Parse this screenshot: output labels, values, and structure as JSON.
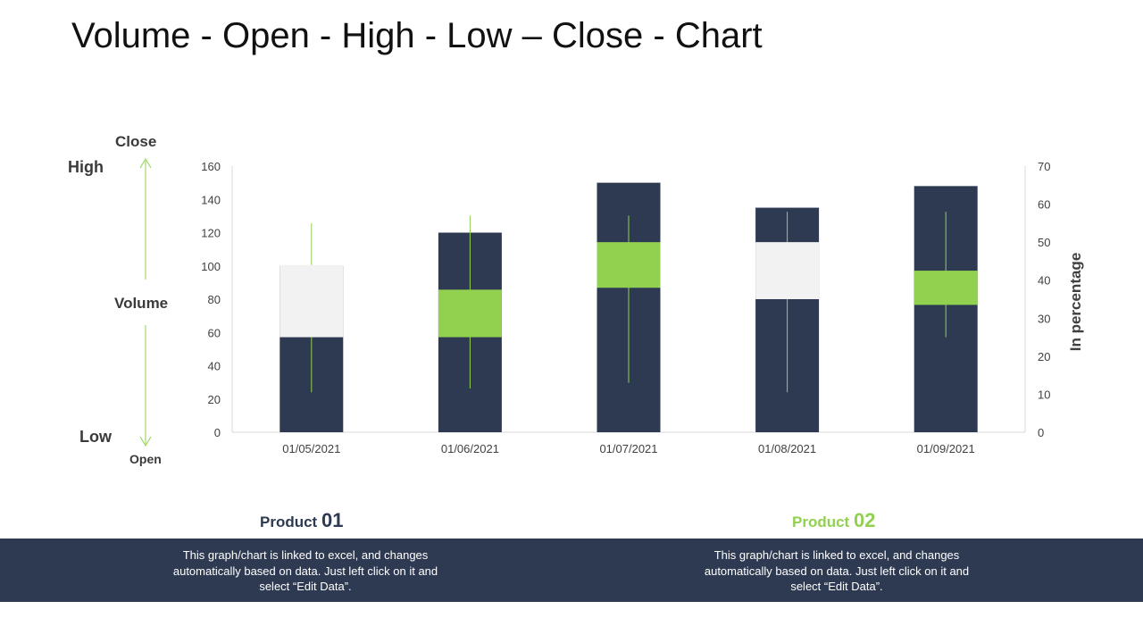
{
  "title": "Volume - Open - High - Low – Close - Chart",
  "legend": {
    "close": "Close",
    "high": "High",
    "volume": "Volume",
    "low": "Low",
    "open": "Open"
  },
  "colors": {
    "volume_bar": "#2e3a52",
    "up_candle": "#92d050",
    "down_candle": "#f2f2f2",
    "wick": "#92d050",
    "axis_text": "#404040",
    "footer": "#2e3a52"
  },
  "chart_data": {
    "type": "bar",
    "title": "",
    "categories": [
      "01/05/2021",
      "01/06/2021",
      "01/07/2021",
      "01/08/2021",
      "01/09/2021"
    ],
    "series": [
      {
        "name": "Volume",
        "axis": "left",
        "values": [
          100,
          120,
          150,
          135,
          148
        ]
      },
      {
        "name": "Open",
        "axis": "right",
        "values": [
          44,
          25,
          38,
          50,
          33.5
        ]
      },
      {
        "name": "High",
        "axis": "right",
        "values": [
          55,
          57,
          57,
          58,
          58
        ]
      },
      {
        "name": "Low",
        "axis": "right",
        "values": [
          10.5,
          11.5,
          13,
          10.5,
          25
        ]
      },
      {
        "name": "Close",
        "axis": "right",
        "values": [
          25,
          37.5,
          50,
          35,
          42.5
        ]
      }
    ],
    "ylim_left": [
      0,
      160
    ],
    "yticks_left": [
      0,
      20,
      40,
      60,
      80,
      100,
      120,
      140,
      160
    ],
    "ylim_right": [
      0,
      70
    ],
    "yticks_right": [
      0,
      10,
      20,
      30,
      40,
      50,
      60,
      70
    ],
    "xlabel": "",
    "ylabel_left": "",
    "ylabel_right": "In percentage",
    "grid": false
  },
  "products": [
    {
      "label": "Product",
      "number": "01",
      "color": "#2e3a52",
      "description": "This graph/chart is linked to excel, and changes automatically based on data. Just left click on it and select “Edit Data”."
    },
    {
      "label": "Product",
      "number": "02",
      "color": "#92d050",
      "description": "This graph/chart is linked to excel, and changes automatically based on data. Just left click on it and select “Edit Data”."
    }
  ]
}
